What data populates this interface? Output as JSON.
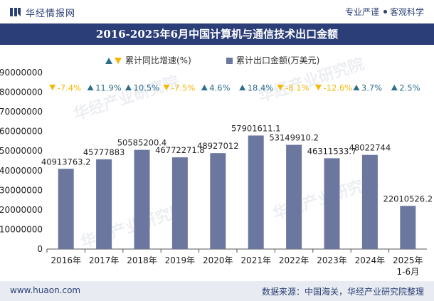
{
  "header": {
    "brand": "华经情报网",
    "slogan_left": "专业严谨",
    "slogan_right": "客观科学"
  },
  "footer": {
    "website": "www.huaon.com",
    "source": "数据来源：中国海关，华经产业研究院整理"
  },
  "watermark": {
    "text": "华经产业研究院",
    "url": "www.huaon.com"
  },
  "colors": {
    "bar": "#6b779f",
    "up": "#2d6d8e",
    "down": "#f5b800",
    "title_bg": "#2b3e77"
  },
  "chart_data": {
    "type": "bar",
    "title": "2016-2025年6月中国计算机与通信技术出口金额",
    "legend": [
      "累计同比增速(%)",
      "累计出口金额(万美元)"
    ],
    "categories": [
      "2016年",
      "2017年",
      "2018年",
      "2019年",
      "2020年",
      "2021年",
      "2022年",
      "2023年",
      "2024年",
      "2025年\n1-6月"
    ],
    "series": [
      {
        "name": "累计出口金额(万美元)",
        "values": [
          40913763.2,
          45777883,
          50585200.4,
          46772271.8,
          48927012.5,
          57901611.1,
          53149910.2,
          46311533.7,
          48022744,
          22010526.2
        ],
        "labels": [
          "40913763.2",
          "45777883",
          "50585200.4",
          "46772271.8",
          "48927012",
          "57901611.1",
          "53149910.2",
          "46311533.7",
          "48022744",
          "22010526.2"
        ]
      },
      {
        "name": "累计同比增速(%)",
        "values": [
          -7.4,
          11.9,
          10.5,
          -7.5,
          4.6,
          18.4,
          -8.1,
          -12.6,
          3.7,
          2.5
        ],
        "labels": [
          "-7.4%",
          "11.9%",
          "10.5%",
          "-7.5%",
          "4.6%",
          "18.4%",
          "-8.1%",
          "-12.6%",
          "3.7%",
          "2.5%"
        ]
      }
    ],
    "yticks": [
      "90000000",
      "80000000",
      "70000000",
      "60000000",
      "50000000",
      "40000000",
      "30000000",
      "20000000",
      "10000000",
      "0"
    ],
    "ylim": [
      0,
      90000000
    ],
    "grid": false,
    "legend_position": "top-center"
  }
}
